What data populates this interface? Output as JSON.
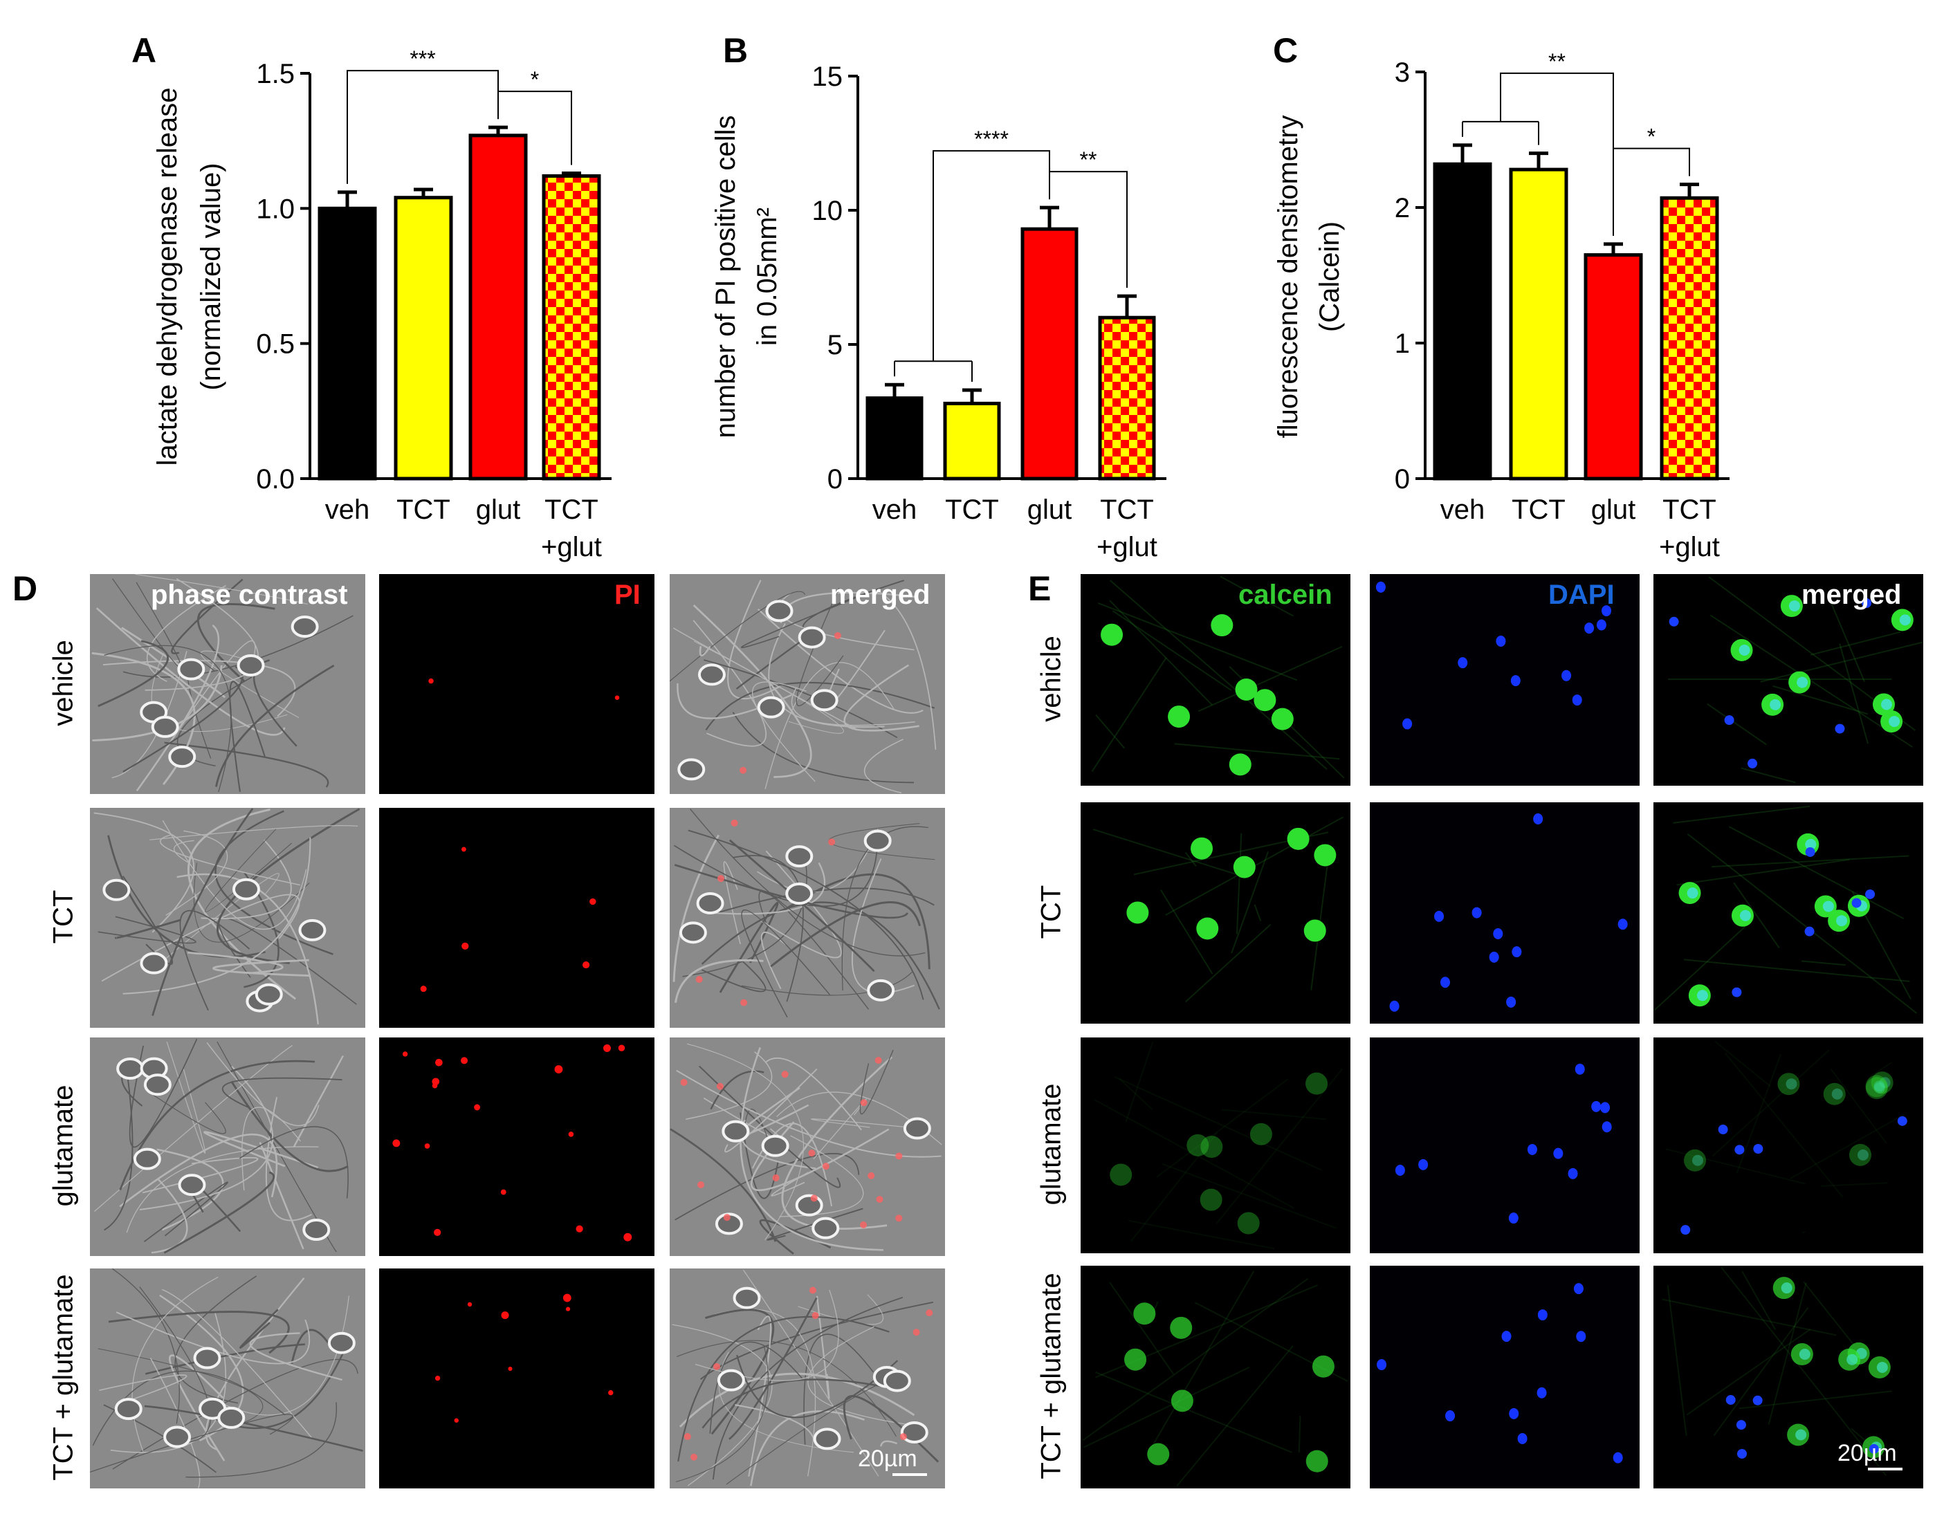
{
  "panels": {
    "A": "A",
    "B": "B",
    "C": "C",
    "D": "D",
    "E": "E"
  },
  "chart_data": [
    {
      "type": "bar",
      "panel": "A",
      "categories": [
        "veh",
        "TCT",
        "glut",
        "TCT\n+glut"
      ],
      "values": [
        1.0,
        1.04,
        1.27,
        1.12
      ],
      "errors": [
        0.06,
        0.03,
        0.03,
        0.01
      ],
      "ylabel": "lactate dehydrogenase release\n(normalized value)",
      "ylim": [
        0,
        1.5
      ],
      "yticks": [
        "0.0",
        "0.5",
        "1.0",
        "1.5"
      ],
      "ytick_values": [
        0,
        0.5,
        1.0,
        1.5
      ],
      "colors": [
        "#000000",
        "#ffff00",
        "#ff0000",
        "checker"
      ],
      "significance": [
        {
          "from": 0,
          "to": 2,
          "label": "***"
        },
        {
          "from": 2,
          "to": 3,
          "label": "*"
        }
      ]
    },
    {
      "type": "bar",
      "panel": "B",
      "categories": [
        "veh",
        "TCT",
        "glut",
        "TCT\n+glut"
      ],
      "values": [
        3.0,
        2.8,
        9.3,
        6.0
      ],
      "errors": [
        0.5,
        0.5,
        0.8,
        0.8
      ],
      "ylabel": "number of PI positive cells\nin 0.05mm²",
      "ylim": [
        0,
        15
      ],
      "yticks": [
        "0",
        "5",
        "10",
        "15"
      ],
      "ytick_values": [
        0,
        5,
        10,
        15
      ],
      "colors": [
        "#000000",
        "#ffff00",
        "#ff0000",
        "checker"
      ],
      "significance": [
        {
          "from": "0-1",
          "to": 2,
          "label": "****"
        },
        {
          "from": 2,
          "to": 3,
          "label": "**"
        }
      ]
    },
    {
      "type": "bar",
      "panel": "C",
      "categories": [
        "veh",
        "TCT",
        "glut",
        "TCT\n+glut"
      ],
      "values": [
        2.32,
        2.28,
        1.65,
        2.07
      ],
      "errors": [
        0.14,
        0.12,
        0.08,
        0.1
      ],
      "ylabel": "fluorescence densitometry\n(Calcein)",
      "ylim": [
        0,
        3
      ],
      "yticks": [
        "0",
        "1",
        "2",
        "3"
      ],
      "ytick_values": [
        0,
        1,
        2,
        3
      ],
      "colors": [
        "#000000",
        "#ffff00",
        "#ff0000",
        "checker"
      ],
      "significance": [
        {
          "from": "0-1",
          "to": 2,
          "label": "**"
        },
        {
          "from": 2,
          "to": 3,
          "label": "*"
        }
      ]
    }
  ],
  "panel_D": {
    "column_labels": [
      "phase contrast",
      "PI",
      "merged"
    ],
    "column_label_colors": [
      "#ffffff",
      "#ff2020",
      "#ffffff"
    ],
    "row_labels": [
      "vehicle",
      "TCT",
      "glutamate",
      "TCT + glutamate"
    ],
    "scalebar": "20µm"
  },
  "panel_E": {
    "column_labels": [
      "calcein",
      "DAPI",
      "merged"
    ],
    "column_label_colors": [
      "#33cc33",
      "#1a66dd",
      "#ffffff"
    ],
    "row_labels": [
      "vehicle",
      "TCT",
      "glutamate",
      "TCT + glutamate"
    ],
    "scalebar": "20µm"
  }
}
